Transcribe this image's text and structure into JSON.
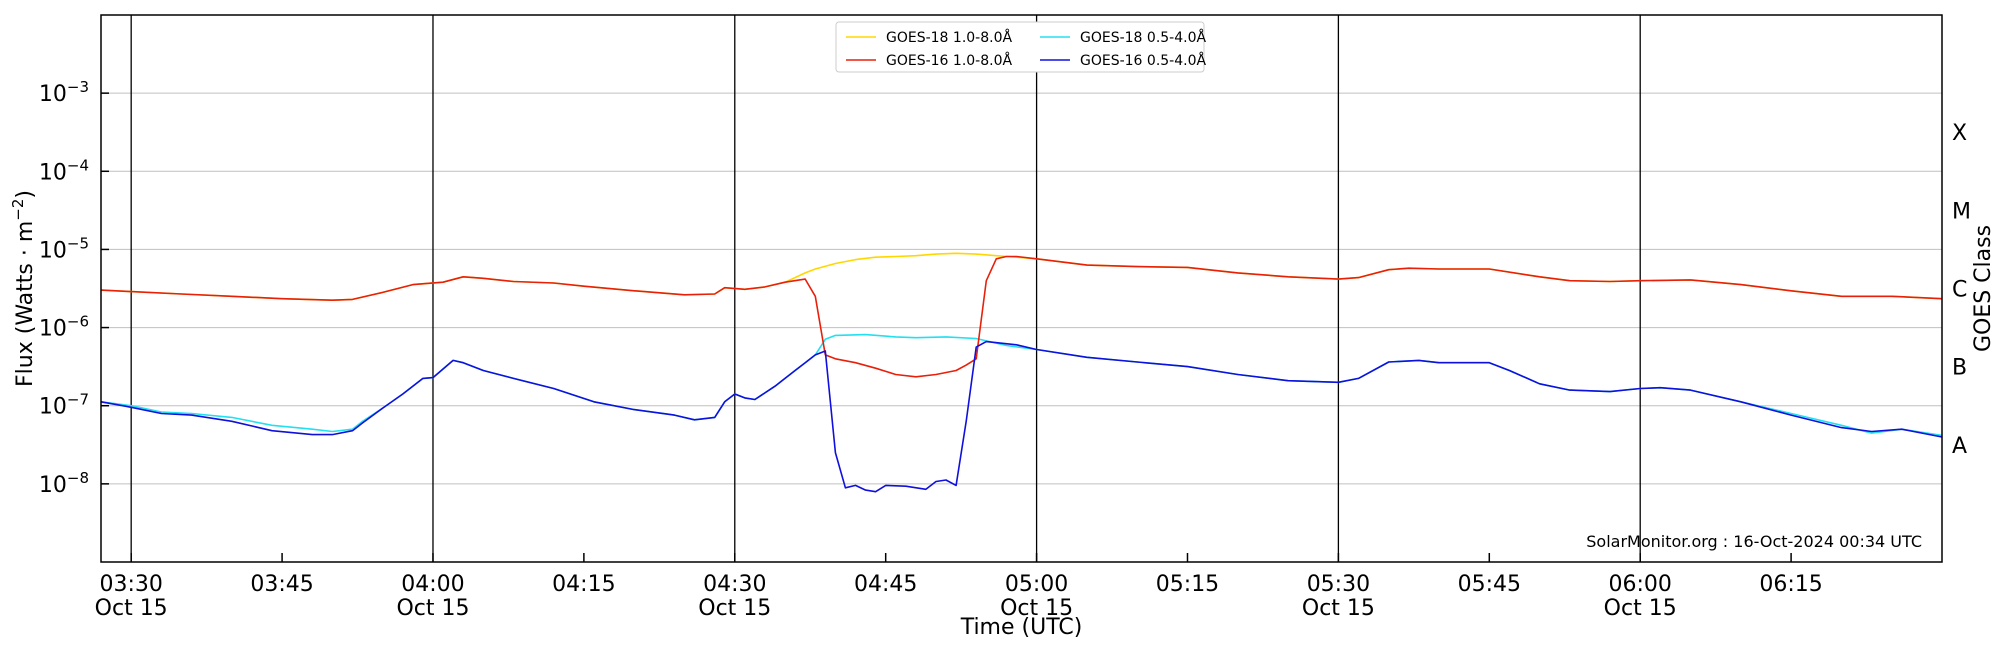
{
  "chart_data": {
    "type": "line",
    "xlabel": "Time (UTC)",
    "ylabel_main": "Flux (Watts · m",
    "ylabel_exp": "−2",
    "ylabel_close": ")",
    "y2label": "GOES Class",
    "yscale": "log",
    "xlim": [
      27,
      210
    ],
    "ylim_log10": [
      -9,
      -2
    ],
    "grid": "horizontal",
    "legend_position": "top-center",
    "credit": "SolarMonitor.org : 16-Oct-2024 00:34 UTC",
    "x_unit": "minutes after 03:00 UTC, 15 Oct 2024",
    "x_ticks": [
      {
        "x": 30,
        "label": "03:30",
        "date": "Oct 15",
        "major": true
      },
      {
        "x": 45,
        "label": "03:45",
        "date": "",
        "major": false
      },
      {
        "x": 60,
        "label": "04:00",
        "date": "Oct 15",
        "major": true
      },
      {
        "x": 75,
        "label": "04:15",
        "date": "",
        "major": false
      },
      {
        "x": 90,
        "label": "04:30",
        "date": "Oct 15",
        "major": true
      },
      {
        "x": 105,
        "label": "04:45",
        "date": "",
        "major": false
      },
      {
        "x": 120,
        "label": "05:00",
        "date": "Oct 15",
        "major": true
      },
      {
        "x": 135,
        "label": "05:15",
        "date": "",
        "major": false
      },
      {
        "x": 150,
        "label": "05:30",
        "date": "Oct 15",
        "major": true
      },
      {
        "x": 165,
        "label": "05:45",
        "date": "",
        "major": false
      },
      {
        "x": 180,
        "label": "06:00",
        "date": "Oct 15",
        "major": true
      },
      {
        "x": 195,
        "label": "06:15",
        "date": "",
        "major": false
      }
    ],
    "y_ticks": [
      {
        "exp": -8,
        "base": "10",
        "sup": "−8"
      },
      {
        "exp": -7,
        "base": "10",
        "sup": "−7"
      },
      {
        "exp": -6,
        "base": "10",
        "sup": "−6"
      },
      {
        "exp": -5,
        "base": "10",
        "sup": "−5"
      },
      {
        "exp": -4,
        "base": "10",
        "sup": "−4"
      },
      {
        "exp": -3,
        "base": "10",
        "sup": "−3"
      }
    ],
    "goes_classes": [
      {
        "label": "A",
        "exp": -7.5
      },
      {
        "label": "B",
        "exp": -6.5
      },
      {
        "label": "C",
        "exp": -5.5
      },
      {
        "label": "M",
        "exp": -4.5
      },
      {
        "label": "X",
        "exp": -3.5
      }
    ],
    "series": [
      {
        "name": "GOES-18 1.0-8.0Å",
        "color": "#ffd700",
        "points": [
          [
            27,
            -5.52
          ],
          [
            30,
            -5.54
          ],
          [
            35,
            -5.57
          ],
          [
            40,
            -5.6
          ],
          [
            45,
            -5.63
          ],
          [
            50,
            -5.65
          ],
          [
            52,
            -5.64
          ],
          [
            55,
            -5.55
          ],
          [
            58,
            -5.45
          ],
          [
            61,
            -5.42
          ],
          [
            63,
            -5.35
          ],
          [
            65,
            -5.37
          ],
          [
            68,
            -5.41
          ],
          [
            72,
            -5.43
          ],
          [
            75,
            -5.47
          ],
          [
            80,
            -5.53
          ],
          [
            85,
            -5.58
          ],
          [
            88,
            -5.57
          ],
          [
            89,
            -5.49
          ],
          [
            91,
            -5.51
          ],
          [
            93,
            -5.48
          ],
          [
            95,
            -5.42
          ],
          [
            97,
            -5.3
          ],
          [
            98,
            -5.25
          ],
          [
            100,
            -5.18
          ],
          [
            102,
            -5.13
          ],
          [
            104,
            -5.1
          ],
          [
            106,
            -5.09
          ],
          [
            108,
            -5.08
          ],
          [
            110,
            -5.06
          ],
          [
            112,
            -5.05
          ],
          [
            114,
            -5.06
          ],
          [
            116,
            -5.08
          ],
          [
            118,
            -5.1
          ],
          [
            120,
            -5.12
          ],
          [
            125,
            -5.2
          ],
          [
            130,
            -5.22
          ],
          [
            135,
            -5.23
          ],
          [
            140,
            -5.3
          ],
          [
            145,
            -5.35
          ],
          [
            150,
            -5.38
          ],
          [
            152,
            -5.36
          ],
          [
            155,
            -5.26
          ],
          [
            157,
            -5.24
          ],
          [
            160,
            -5.25
          ],
          [
            165,
            -5.25
          ],
          [
            170,
            -5.35
          ],
          [
            173,
            -5.4
          ],
          [
            177,
            -5.41
          ],
          [
            180,
            -5.4
          ],
          [
            185,
            -5.39
          ],
          [
            190,
            -5.45
          ],
          [
            195,
            -5.53
          ],
          [
            200,
            -5.6
          ],
          [
            205,
            -5.6
          ],
          [
            210,
            -5.63
          ]
        ]
      },
      {
        "name": "GOES-18 0.5-4.0Å",
        "color": "#22e0f0",
        "points": [
          [
            27,
            -6.95
          ],
          [
            30,
            -7.0
          ],
          [
            33,
            -7.08
          ],
          [
            36,
            -7.1
          ],
          [
            40,
            -7.15
          ],
          [
            44,
            -7.25
          ],
          [
            48,
            -7.3
          ],
          [
            50,
            -7.33
          ],
          [
            52,
            -7.3
          ],
          [
            53,
            -7.2
          ],
          [
            55,
            -7.03
          ],
          [
            57,
            -6.85
          ],
          [
            59,
            -6.65
          ],
          [
            60,
            -6.64
          ],
          [
            62,
            -6.42
          ],
          [
            63,
            -6.45
          ],
          [
            65,
            -6.55
          ],
          [
            68,
            -6.65
          ],
          [
            72,
            -6.78
          ],
          [
            76,
            -6.95
          ],
          [
            80,
            -7.05
          ],
          [
            84,
            -7.12
          ],
          [
            86,
            -7.18
          ],
          [
            88,
            -7.15
          ],
          [
            89,
            -6.95
          ],
          [
            90,
            -6.85
          ],
          [
            91,
            -6.9
          ],
          [
            92,
            -6.92
          ],
          [
            94,
            -6.75
          ],
          [
            96,
            -6.55
          ],
          [
            97,
            -6.45
          ],
          [
            98,
            -6.35
          ],
          [
            99,
            -6.15
          ],
          [
            100,
            -6.1
          ],
          [
            103,
            -6.09
          ],
          [
            106,
            -6.12
          ],
          [
            108,
            -6.13
          ],
          [
            111,
            -6.12
          ],
          [
            114,
            -6.14
          ],
          [
            117,
            -6.23
          ],
          [
            120,
            -6.28
          ],
          [
            125,
            -6.38
          ],
          [
            130,
            -6.44
          ],
          [
            135,
            -6.5
          ],
          [
            140,
            -6.6
          ],
          [
            145,
            -6.68
          ],
          [
            150,
            -6.7
          ],
          [
            152,
            -6.65
          ],
          [
            155,
            -6.44
          ],
          [
            158,
            -6.42
          ],
          [
            160,
            -6.45
          ],
          [
            165,
            -6.45
          ],
          [
            167,
            -6.55
          ],
          [
            170,
            -6.72
          ],
          [
            173,
            -6.8
          ],
          [
            177,
            -6.82
          ],
          [
            180,
            -6.78
          ],
          [
            182,
            -6.77
          ],
          [
            185,
            -6.8
          ],
          [
            190,
            -6.95
          ],
          [
            195,
            -7.1
          ],
          [
            200,
            -7.25
          ],
          [
            203,
            -7.35
          ],
          [
            206,
            -7.3
          ],
          [
            210,
            -7.38
          ]
        ]
      },
      {
        "name": "GOES-16 1.0-8.0Å",
        "color": "#e8200a",
        "points": [
          [
            27,
            -5.52
          ],
          [
            30,
            -5.54
          ],
          [
            35,
            -5.57
          ],
          [
            40,
            -5.6
          ],
          [
            45,
            -5.63
          ],
          [
            50,
            -5.65
          ],
          [
            52,
            -5.64
          ],
          [
            55,
            -5.55
          ],
          [
            58,
            -5.45
          ],
          [
            61,
            -5.42
          ],
          [
            63,
            -5.35
          ],
          [
            65,
            -5.37
          ],
          [
            68,
            -5.41
          ],
          [
            72,
            -5.43
          ],
          [
            75,
            -5.47
          ],
          [
            80,
            -5.53
          ],
          [
            85,
            -5.58
          ],
          [
            88,
            -5.57
          ],
          [
            89,
            -5.49
          ],
          [
            91,
            -5.51
          ],
          [
            93,
            -5.48
          ],
          [
            95,
            -5.42
          ],
          [
            97,
            -5.38
          ],
          [
            98,
            -5.6
          ],
          [
            99,
            -6.35
          ],
          [
            100,
            -6.4
          ],
          [
            102,
            -6.45
          ],
          [
            104,
            -6.52
          ],
          [
            106,
            -6.6
          ],
          [
            108,
            -6.63
          ],
          [
            110,
            -6.6
          ],
          [
            112,
            -6.55
          ],
          [
            113,
            -6.48
          ],
          [
            114,
            -6.4
          ],
          [
            115,
            -5.4
          ],
          [
            116,
            -5.12
          ],
          [
            117,
            -5.09
          ],
          [
            118,
            -5.09
          ],
          [
            120,
            -5.12
          ],
          [
            125,
            -5.2
          ],
          [
            130,
            -5.22
          ],
          [
            135,
            -5.23
          ],
          [
            140,
            -5.3
          ],
          [
            145,
            -5.35
          ],
          [
            150,
            -5.38
          ],
          [
            152,
            -5.36
          ],
          [
            155,
            -5.26
          ],
          [
            157,
            -5.24
          ],
          [
            160,
            -5.25
          ],
          [
            165,
            -5.25
          ],
          [
            170,
            -5.35
          ],
          [
            173,
            -5.4
          ],
          [
            177,
            -5.41
          ],
          [
            180,
            -5.4
          ],
          [
            185,
            -5.39
          ],
          [
            190,
            -5.45
          ],
          [
            195,
            -5.53
          ],
          [
            200,
            -5.6
          ],
          [
            205,
            -5.6
          ],
          [
            210,
            -5.63
          ]
        ]
      },
      {
        "name": "GOES-16 0.5-4.0Å",
        "color": "#1010dd",
        "points": [
          [
            27,
            -6.95
          ],
          [
            30,
            -7.02
          ],
          [
            33,
            -7.1
          ],
          [
            36,
            -7.12
          ],
          [
            40,
            -7.2
          ],
          [
            44,
            -7.32
          ],
          [
            48,
            -7.37
          ],
          [
            50,
            -7.37
          ],
          [
            52,
            -7.32
          ],
          [
            53,
            -7.22
          ],
          [
            55,
            -7.03
          ],
          [
            57,
            -6.85
          ],
          [
            59,
            -6.65
          ],
          [
            60,
            -6.64
          ],
          [
            62,
            -6.42
          ],
          [
            63,
            -6.45
          ],
          [
            65,
            -6.55
          ],
          [
            68,
            -6.65
          ],
          [
            72,
            -6.78
          ],
          [
            76,
            -6.95
          ],
          [
            80,
            -7.05
          ],
          [
            84,
            -7.12
          ],
          [
            86,
            -7.18
          ],
          [
            88,
            -7.15
          ],
          [
            89,
            -6.95
          ],
          [
            90,
            -6.85
          ],
          [
            91,
            -6.9
          ],
          [
            92,
            -6.92
          ],
          [
            94,
            -6.75
          ],
          [
            96,
            -6.55
          ],
          [
            97,
            -6.45
          ],
          [
            98,
            -6.35
          ],
          [
            99,
            -6.3
          ],
          [
            100,
            -7.6
          ],
          [
            101,
            -8.05
          ],
          [
            102,
            -8.02
          ],
          [
            103,
            -8.08
          ],
          [
            104,
            -8.1
          ],
          [
            105,
            -8.02
          ],
          [
            107,
            -8.03
          ],
          [
            109,
            -8.07
          ],
          [
            110,
            -7.97
          ],
          [
            111,
            -7.95
          ],
          [
            112,
            -8.02
          ],
          [
            113,
            -7.2
          ],
          [
            114,
            -6.25
          ],
          [
            115,
            -6.18
          ],
          [
            118,
            -6.22
          ],
          [
            120,
            -6.28
          ],
          [
            125,
            -6.38
          ],
          [
            130,
            -6.44
          ],
          [
            135,
            -6.5
          ],
          [
            140,
            -6.6
          ],
          [
            145,
            -6.68
          ],
          [
            150,
            -6.7
          ],
          [
            152,
            -6.65
          ],
          [
            155,
            -6.44
          ],
          [
            158,
            -6.42
          ],
          [
            160,
            -6.45
          ],
          [
            165,
            -6.45
          ],
          [
            167,
            -6.55
          ],
          [
            170,
            -6.72
          ],
          [
            173,
            -6.8
          ],
          [
            177,
            -6.82
          ],
          [
            180,
            -6.78
          ],
          [
            182,
            -6.77
          ],
          [
            185,
            -6.8
          ],
          [
            190,
            -6.95
          ],
          [
            195,
            -7.12
          ],
          [
            200,
            -7.28
          ],
          [
            203,
            -7.33
          ],
          [
            206,
            -7.3
          ],
          [
            210,
            -7.4
          ]
        ]
      }
    ]
  }
}
